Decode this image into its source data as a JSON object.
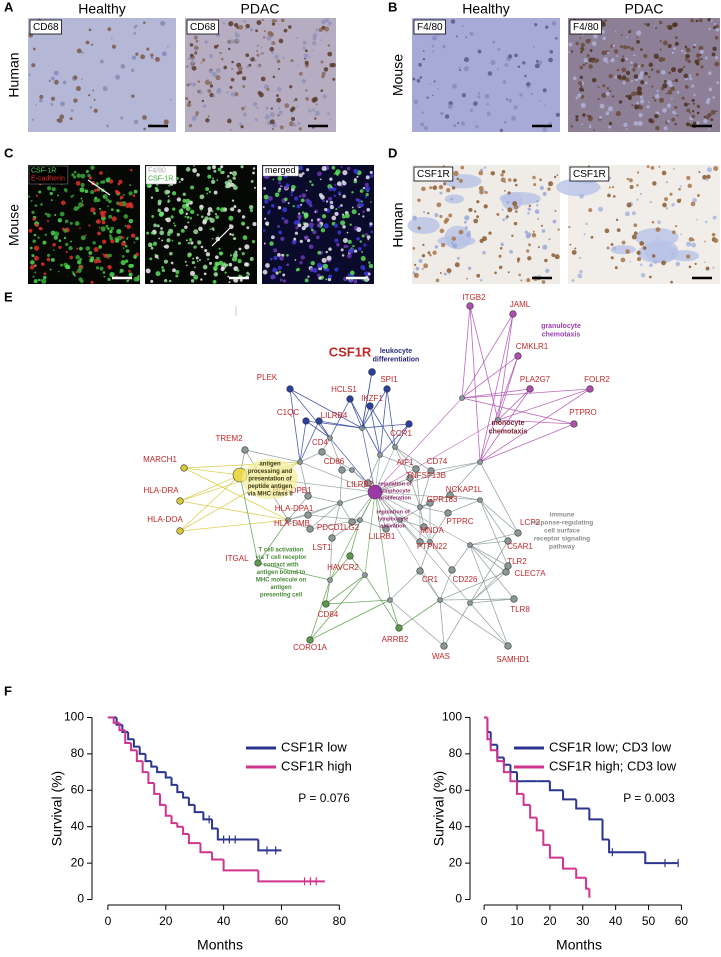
{
  "panels": {
    "a": {
      "letter": "A",
      "side_label": "Human",
      "columns": [
        "Healthy",
        "PDAC"
      ],
      "stains": [
        "CD68",
        "CD68"
      ]
    },
    "b": {
      "letter": "B",
      "side_label": "Mouse",
      "columns": [
        "Healthy",
        "PDAC"
      ],
      "stains": [
        "F4/80",
        "F4/80"
      ]
    },
    "c": {
      "letter": "C",
      "side_label": "Mouse",
      "stains": [
        [
          "CSF-1R",
          "E-cadherin"
        ],
        [
          "F4/80",
          "CSF-1R"
        ],
        [
          "merged"
        ]
      ]
    },
    "d": {
      "letter": "D",
      "side_label": "Human",
      "stains": [
        "CSF1R",
        "CSF1R"
      ]
    },
    "e": {
      "letter": "E",
      "query_gene": "CSF1R",
      "genes": [
        "ITGB2",
        "JAML",
        "CMKLR1",
        "PLA2G7",
        "FOLR2",
        "PTPRO",
        "PLEK",
        "SPI1",
        "HCLS1",
        "IKZF1",
        "LILRB4",
        "C1QC",
        "CCR1",
        "TREM2",
        "MARCH1",
        "CD4",
        "CD86",
        "AIF1",
        "CD74",
        "TNFSF13B",
        "HLA-DRA",
        "HLA-DPB1",
        "LILRB2",
        "NCKAP1L",
        "GPR183",
        "HLA-DOA",
        "HLA-DPA1",
        "PTPRC",
        "LCP2",
        "HLA-DMB",
        "PDCD1LG2",
        "LILRB1",
        "MNDA",
        "C5AR1",
        "PTPN22",
        "LST1",
        "ITGAL",
        "TLR2",
        "CR1",
        "CD226",
        "HAVCR2",
        "CLEC7A",
        "CD84",
        "TLR8",
        "ARRB2",
        "CORO1A",
        "WAS",
        "SAMHD1"
      ],
      "annotations": [
        [
          "leukocyte",
          "differentiation"
        ],
        [
          "granulocyte",
          "chemotaxis"
        ],
        [
          "monocyte",
          "chemotaxis"
        ],
        [
          "antigen",
          "processing and",
          "presentation of",
          "peptide antigen",
          "via MHC class II"
        ],
        [
          "regulation of",
          "lymphocyte",
          "proliferation"
        ],
        [
          "regulation of",
          "lymphocyte",
          "activation"
        ],
        [
          "immune",
          "response-regulating",
          "cell surface",
          "receptor signaling",
          "pathway"
        ],
        [
          "T cell activation",
          "via T cell receptor",
          "contact with",
          "antigen bound to",
          "MHC molecule on",
          "antigen",
          "presenting cell"
        ]
      ]
    },
    "f": {
      "letter": "F"
    }
  },
  "chart_data": [
    {
      "type": "line",
      "step": true,
      "annotation": "P = 0.076",
      "x_label": "Months",
      "y_label": "Survival (%)",
      "xlim": [
        -5.5,
        83
      ],
      "ylim": [
        -3,
        103
      ],
      "xticks": [
        0,
        20,
        40,
        60,
        80
      ],
      "yticks": [
        0,
        20,
        40,
        60,
        80,
        100
      ],
      "series": [
        {
          "name": "CSF1R low",
          "color": "#2b3590",
          "x": [
            0,
            3,
            5,
            7,
            9,
            11,
            13,
            15,
            17,
            20,
            22,
            24,
            26,
            28,
            30,
            33,
            36,
            38,
            52,
            60
          ],
          "values": [
            100,
            96,
            92,
            88,
            84,
            80,
            76,
            73,
            70,
            67,
            63,
            59,
            56,
            52,
            48,
            44,
            39,
            33,
            27,
            27
          ],
          "censored": [
            35,
            40,
            42,
            44,
            55,
            58
          ]
        },
        {
          "name": "CSF1R high",
          "color": "#d0348e",
          "x": [
            0,
            2,
            4,
            6,
            8,
            10,
            12,
            14,
            16,
            18,
            20,
            22,
            24,
            26,
            28,
            32,
            36,
            40,
            52,
            75
          ],
          "values": [
            100,
            97,
            93,
            86,
            82,
            76,
            70,
            64,
            58,
            52,
            46,
            42,
            40,
            36,
            31,
            26,
            22,
            16,
            10,
            10
          ],
          "censored": [
            68,
            70,
            72
          ]
        }
      ]
    },
    {
      "type": "line",
      "step": true,
      "annotation": "P = 0.003",
      "x_label": "Months",
      "y_label": "Survival (%)",
      "xlim": [
        -4.3,
        62
      ],
      "ylim": [
        -3,
        103
      ],
      "xticks": [
        0,
        10,
        20,
        30,
        40,
        50,
        60
      ],
      "yticks": [
        0,
        20,
        40,
        60,
        80,
        100
      ],
      "series": [
        {
          "name": "CSF1R low; CD3 low",
          "color": "#2b3590",
          "x": [
            0,
            1,
            2,
            4,
            6,
            8,
            10,
            12,
            16,
            20,
            24,
            28,
            32,
            36,
            38,
            49,
            59
          ],
          "values": [
            100,
            92,
            85,
            78,
            74,
            70,
            65,
            65,
            65,
            60,
            55,
            50,
            44,
            33,
            26,
            20,
            20
          ],
          "censored": [
            39,
            55,
            59
          ]
        },
        {
          "name": "CSF1R high; CD3 low",
          "color": "#d0348e",
          "x": [
            0,
            1,
            2,
            4,
            6,
            8,
            10,
            12,
            14,
            16,
            18,
            20,
            24,
            28,
            31,
            32
          ],
          "values": [
            100,
            88,
            82,
            76,
            70,
            65,
            58,
            52,
            45,
            38,
            30,
            23,
            17,
            12,
            6,
            1
          ],
          "censored": []
        }
      ]
    }
  ]
}
